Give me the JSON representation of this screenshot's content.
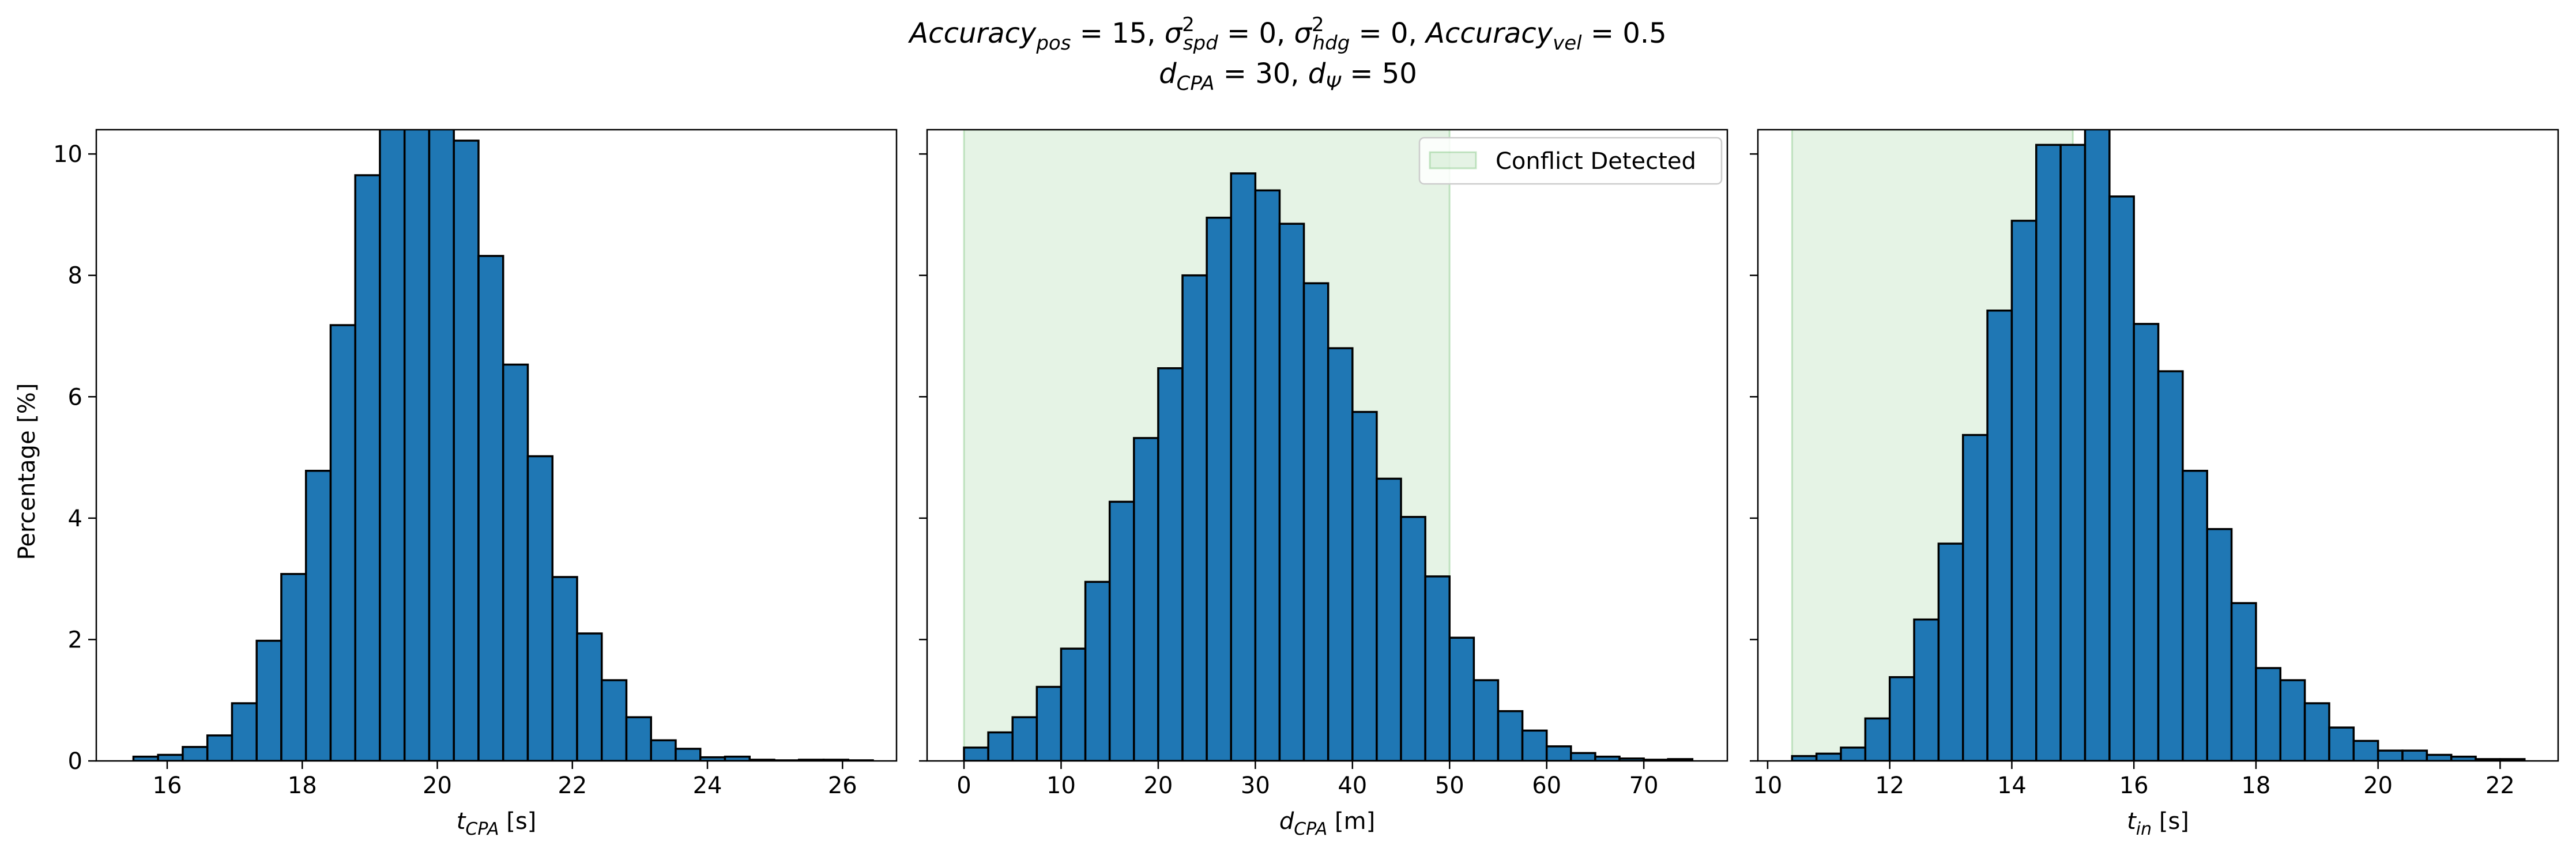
{
  "title": {
    "line1": [
      {
        "t": "Accuracy",
        "s": "pos",
        "tail": " = 15, "
      },
      {
        "t": "σ",
        "sup": "2",
        "s": "spd",
        "tail": " = 0, "
      },
      {
        "t": "σ",
        "sup": "2",
        "s": "hdg",
        "tail": " = 0, "
      },
      {
        "t": "Accuracy",
        "s": "vel",
        "tail": " = 0.5"
      }
    ],
    "line2": [
      {
        "t": "d",
        "s": "CPA",
        "tail": " = 30, "
      },
      {
        "t": "d",
        "s": "Ψ",
        "tail": " = 50"
      }
    ]
  },
  "colors": {
    "bar_fill": "#1f77b4",
    "bar_edge": "#000000",
    "region_fill": "#2ca02c"
  },
  "legend": {
    "label": "Conflict Detected",
    "placement": "upper right of middle panel"
  },
  "chart_data": [
    {
      "type": "bar",
      "panel": "t_cpa",
      "xlabel": {
        "var": "t",
        "sub": "CPA",
        "unit": " [s]"
      },
      "ylabel": "Percentage [%]",
      "xlim": [
        14.95,
        26.8
      ],
      "ylim": [
        0,
        10.4
      ],
      "xticks": [
        16,
        18,
        20,
        22,
        24,
        26
      ],
      "yticks": [
        0,
        2,
        4,
        6,
        8,
        10
      ],
      "bin_width": 0.365,
      "bin_start": 15.5,
      "values": [
        0.07,
        0.1,
        0.23,
        0.42,
        0.95,
        1.98,
        3.08,
        4.78,
        7.18,
        9.65,
        10.9,
        11.2,
        10.9,
        10.22,
        8.32,
        6.53,
        5.02,
        3.03,
        2.1,
        1.33,
        0.72,
        0.34,
        0.2,
        0.06,
        0.07,
        0.02,
        0.01,
        0.02,
        0.02,
        0.01
      ],
      "shaded_region": null
    },
    {
      "type": "bar",
      "panel": "d_cpa",
      "xlabel": {
        "var": "d",
        "sub": "CPA",
        "unit": " [m]"
      },
      "xlim": [
        -3.8,
        78.6
      ],
      "ylim": [
        0,
        10.4
      ],
      "xticks": [
        0,
        10,
        20,
        30,
        40,
        50,
        60,
        70
      ],
      "yticks": [
        0,
        2,
        4,
        6,
        8,
        10
      ],
      "bin_width": 2.5,
      "bin_start": 0,
      "values": [
        0.22,
        0.47,
        0.72,
        1.22,
        1.85,
        2.95,
        4.27,
        5.32,
        6.47,
        8.0,
        8.95,
        9.68,
        9.4,
        8.85,
        7.87,
        6.8,
        5.75,
        4.65,
        4.02,
        3.04,
        2.03,
        1.33,
        0.82,
        0.5,
        0.24,
        0.13,
        0.07,
        0.04,
        0.02,
        0.03
      ],
      "shaded_region": {
        "from": 0,
        "to": 50,
        "label": "Conflict Detected"
      }
    },
    {
      "type": "bar",
      "panel": "t_in",
      "xlabel": {
        "var": "t",
        "sub": "in",
        "unit": " [s]"
      },
      "xlim": [
        9.84,
        22.95
      ],
      "ylim": [
        0,
        10.4
      ],
      "xticks": [
        10,
        12,
        14,
        16,
        18,
        20,
        22
      ],
      "yticks": [
        0,
        2,
        4,
        6,
        8,
        10
      ],
      "bin_width": 0.4,
      "bin_start": 10.4,
      "values": [
        0.08,
        0.12,
        0.22,
        0.7,
        1.38,
        2.33,
        3.58,
        5.37,
        7.42,
        8.9,
        10.15,
        10.15,
        10.5,
        9.3,
        7.2,
        6.42,
        4.78,
        3.82,
        2.6,
        1.53,
        1.33,
        0.95,
        0.55,
        0.33,
        0.17,
        0.17,
        0.1,
        0.07,
        0.03,
        0.03
      ],
      "shaded_region": {
        "from": 10.4,
        "to": 15.0,
        "label": "Conflict Detected"
      }
    }
  ]
}
